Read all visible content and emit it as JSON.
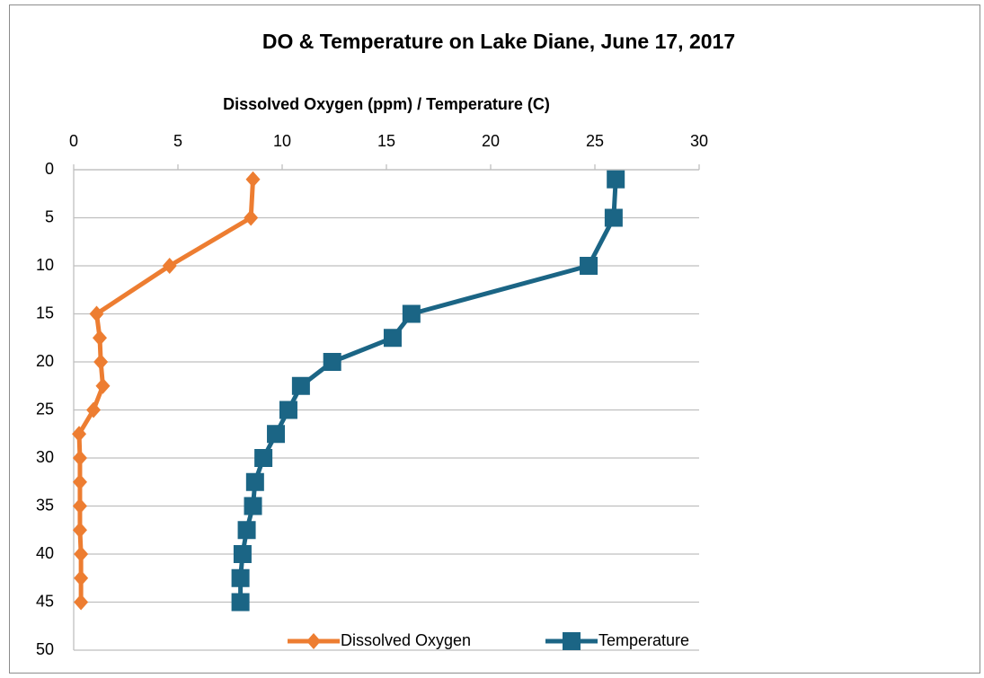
{
  "chart_data": {
    "type": "line",
    "title": "DO & Temperature on Lake Diane, June 17, 2017",
    "x_label": "Dissolved Oxygen (ppm) / Temperature (C)",
    "xlim": [
      0,
      30
    ],
    "xticks": [
      0,
      5,
      10,
      15,
      20,
      25,
      30
    ],
    "x_axis_position": "top",
    "ylim": [
      0,
      50
    ],
    "yticks": [
      0,
      5,
      10,
      15,
      20,
      25,
      30,
      35,
      40,
      45,
      50
    ],
    "y_inverted": true,
    "grid": true,
    "legend": "bottom",
    "depth": [
      1,
      5,
      10,
      15,
      17.5,
      20,
      22.5,
      25,
      27.5,
      30,
      32.5,
      35,
      37.5,
      40,
      42.5,
      45
    ],
    "series": [
      {
        "name": "Dissolved Oxygen",
        "color": "#ED7D31",
        "marker": "diamond",
        "values": [
          8.6,
          8.5,
          4.6,
          1.1,
          1.25,
          1.3,
          1.4,
          0.95,
          0.26,
          0.3,
          0.3,
          0.3,
          0.3,
          0.35,
          0.35,
          0.35
        ]
      },
      {
        "name": "Temperature",
        "color": "#1B6585",
        "marker": "square",
        "values": [
          26.0,
          25.9,
          24.7,
          16.2,
          15.3,
          12.4,
          10.9,
          10.3,
          9.7,
          9.1,
          8.7,
          8.6,
          8.3,
          8.1,
          8.0,
          8.0
        ]
      }
    ]
  }
}
